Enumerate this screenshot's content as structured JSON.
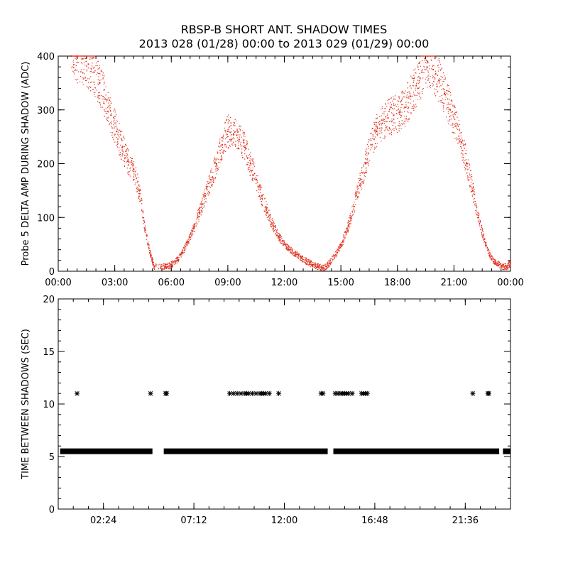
{
  "header": {
    "title": "RBSP-B SHORT ANT. SHADOW TIMES",
    "subtitle": "2013 028 (01/28) 00:00 to 2013 029 (01/29) 00:00"
  },
  "chart_data": [
    {
      "type": "scatter",
      "ylabel": "Probe 5 DELTA AMP DURING SHADOW (ADC)",
      "xlim": [
        0,
        24
      ],
      "ylim": [
        0,
        400
      ],
      "xticks": [
        0,
        3,
        6,
        9,
        12,
        15,
        18,
        21,
        24
      ],
      "xtick_labels": [
        "00:00",
        "03:00",
        "06:00",
        "09:00",
        "12:00",
        "15:00",
        "18:00",
        "21:00",
        "00:00"
      ],
      "yticks": [
        0,
        100,
        200,
        300,
        400
      ],
      "ytick_labels": [
        "0",
        "100",
        "200",
        "300",
        "400"
      ],
      "color": "#e0301e",
      "series": [
        {
          "x": [
            0.7,
            1.0,
            1.3,
            1.6,
            1.9,
            2.2,
            2.5,
            2.8,
            3.1,
            3.4,
            3.7,
            4.0,
            4.3,
            4.6,
            4.9,
            5.1,
            5.7,
            6.0,
            6.3,
            6.6,
            6.9,
            7.2,
            7.5,
            7.8,
            8.1,
            8.4,
            8.7,
            9.0,
            9.3,
            9.6,
            9.9,
            10.2,
            10.5,
            10.8,
            11.1,
            11.4,
            11.7,
            12.0,
            12.3,
            12.6,
            12.9,
            13.2,
            13.5,
            13.8,
            14.1,
            14.4,
            14.8,
            15.1,
            15.4,
            15.7,
            16.0,
            16.3,
            16.6,
            16.9,
            17.2,
            17.5,
            17.8,
            18.1,
            18.4,
            18.7,
            19.0,
            19.3,
            19.6,
            19.9,
            20.2,
            20.5,
            20.8,
            21.1,
            21.4,
            21.7,
            22.0,
            22.3,
            22.6,
            22.9,
            23.2,
            23.5,
            23.8,
            24.0
          ],
          "y": [
            400,
            398,
            395,
            385,
            370,
            350,
            320,
            290,
            260,
            230,
            205,
            190,
            150,
            80,
            30,
            8,
            8,
            12,
            20,
            35,
            55,
            80,
            110,
            140,
            170,
            200,
            235,
            260,
            255,
            245,
            230,
            200,
            170,
            140,
            110,
            85,
            65,
            50,
            40,
            32,
            25,
            18,
            12,
            8,
            5,
            15,
            35,
            55,
            85,
            120,
            160,
            200,
            235,
            260,
            275,
            285,
            290,
            295,
            305,
            325,
            345,
            370,
            390,
            375,
            355,
            330,
            300,
            270,
            240,
            200,
            150,
            100,
            60,
            30,
            15,
            10,
            8,
            15
          ]
        }
      ]
    },
    {
      "type": "scatter",
      "ylabel": "TIME BETWEEN SHADOWS (SEC)",
      "xlim": [
        0,
        24
      ],
      "ylim": [
        0,
        20
      ],
      "xticks": [
        2.4,
        7.2,
        12.0,
        16.8,
        21.6
      ],
      "xtick_labels": [
        "02:24",
        "07:12",
        "12:00",
        "16:48",
        "21:36"
      ],
      "yticks": [
        0,
        5,
        10,
        15,
        20
      ],
      "ytick_labels": [
        "0",
        "5",
        "10",
        "15",
        "20"
      ],
      "marker": "*",
      "color": "#000000",
      "baseline_value": 5.5,
      "baseline_segments": [
        [
          0.1,
          5.0
        ],
        [
          5.6,
          14.3
        ],
        [
          14.6,
          23.4
        ],
        [
          23.6,
          24.0
        ]
      ],
      "points": {
        "x": [
          1.0,
          4.9,
          5.7,
          5.75,
          9.1,
          9.3,
          9.5,
          9.7,
          9.9,
          10.0,
          10.1,
          10.3,
          10.5,
          10.7,
          10.8,
          10.9,
          11.0,
          11.2,
          11.7,
          13.95,
          14.05,
          14.7,
          14.85,
          15.0,
          15.1,
          15.2,
          15.3,
          15.4,
          15.6,
          16.1,
          16.2,
          16.3,
          16.4,
          22.0,
          22.8,
          22.85
        ],
        "y": [
          11,
          11,
          11,
          11,
          11,
          11,
          11,
          11,
          11,
          11,
          11,
          11,
          11,
          11,
          11,
          11,
          11,
          11,
          11,
          11,
          11,
          11,
          11,
          11,
          11,
          11,
          11,
          11,
          11,
          11,
          11,
          11,
          11,
          11,
          11,
          11
        ]
      }
    }
  ]
}
